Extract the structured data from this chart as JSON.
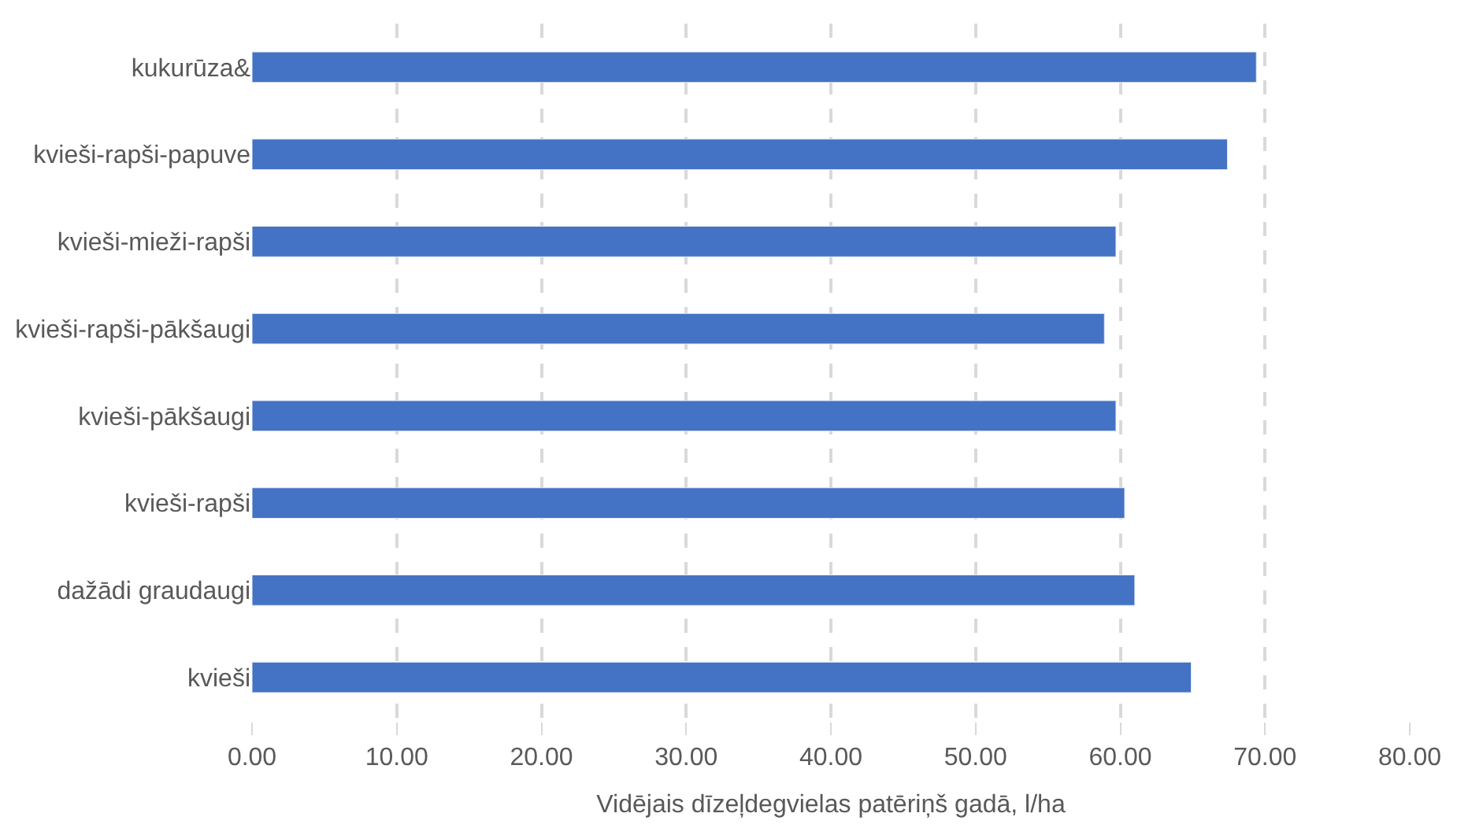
{
  "chart_data": {
    "type": "bar",
    "orientation": "horizontal",
    "xlabel": "Vidējais dīzeļdegvielas patēriņš gadā, l/ha",
    "categories": [
      "kukurūza&",
      "kvieši-rapši-papuve",
      "kvieši-mieži-rapši",
      "kvieši-rapši-pākšaugi",
      "kvieši-pākšaugi",
      "kvieši-rapši",
      "dažādi graudaugi",
      "kvieši"
    ],
    "values": [
      69.4,
      67.4,
      59.7,
      58.9,
      59.7,
      60.3,
      61.0,
      64.9
    ],
    "color": "#4472c4",
    "xlim": [
      0,
      80
    ],
    "xticks": [
      {
        "value": 0,
        "label": "0.00"
      },
      {
        "value": 10,
        "label": "10.00"
      },
      {
        "value": 20,
        "label": "20.00"
      },
      {
        "value": 30,
        "label": "30.00"
      },
      {
        "value": 40,
        "label": "40.00"
      },
      {
        "value": 50,
        "label": "50.00"
      },
      {
        "value": 60,
        "label": "60.00"
      },
      {
        "value": 70,
        "label": "70.00"
      },
      {
        "value": 80,
        "label": "80.00"
      }
    ],
    "grid": "x"
  }
}
